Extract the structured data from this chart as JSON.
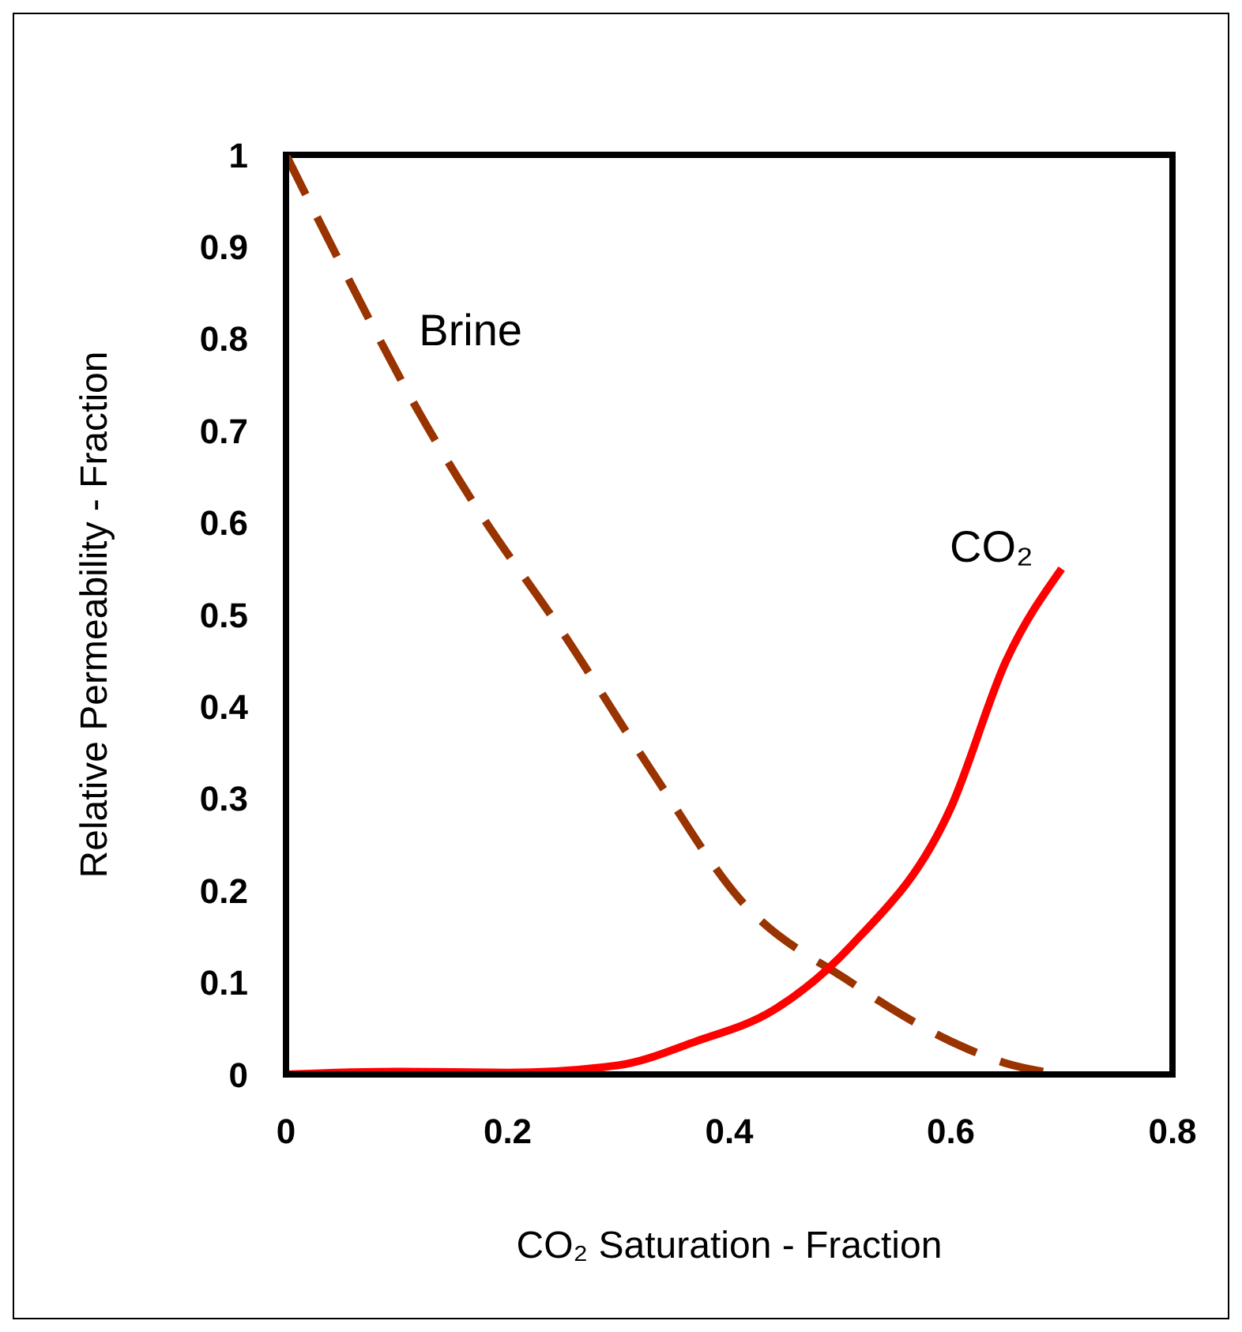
{
  "chart_data": {
    "type": "line",
    "xlabel": "CO₂ Saturation - Fraction",
    "ylabel": "Relative Permeability - Fraction",
    "xlim": [
      0,
      0.8
    ],
    "xticks": [
      0,
      0.2,
      0.4,
      0.6,
      0.8
    ],
    "ylim": [
      0,
      1
    ],
    "yticks": [
      0,
      0.1,
      0.2,
      0.3,
      0.4,
      0.5,
      0.6,
      0.7,
      0.8,
      0.9,
      1
    ],
    "marker": "none",
    "series": [
      {
        "name": "Brine",
        "color": "#993300",
        "line_style": "dashed",
        "x": [
          0,
          0.05,
          0.12,
          0.17,
          0.25,
          0.33,
          0.41,
          0.51,
          0.6,
          0.65,
          0.7
        ],
        "values": [
          1,
          0.88,
          0.72,
          0.62,
          0.48,
          0.33,
          0.19,
          0.1,
          0.036,
          0.012,
          0
        ]
      },
      {
        "name": "CO₂",
        "color": "#ff0000",
        "line_style": "solid",
        "x": [
          0,
          0.1,
          0.2,
          0.3,
          0.37,
          0.44,
          0.51,
          0.6,
          0.65,
          0.7
        ],
        "values": [
          0,
          0.003,
          0.002,
          0.01,
          0.036,
          0.07,
          0.14,
          0.29,
          0.45,
          0.55
        ]
      }
    ]
  }
}
